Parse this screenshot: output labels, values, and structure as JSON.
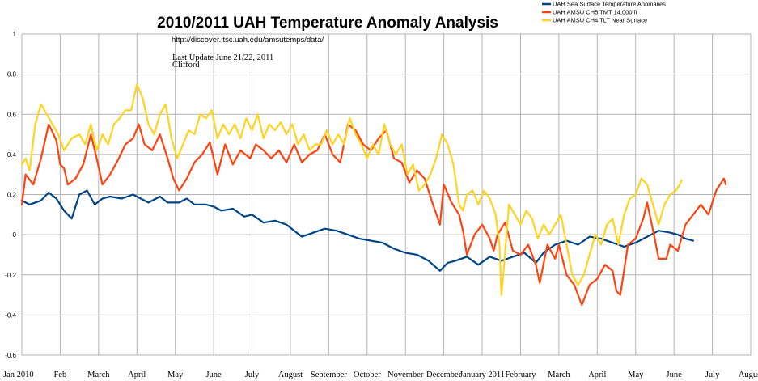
{
  "chart_data": {
    "type": "line",
    "title": "2010/2011 UAH Temperature Anomaly Analysis",
    "subtitle_url": "http://discover.itsc.uah.edu/amsutemps/data/",
    "notes": [
      "Last Update June 21/22, 2011",
      "Clifford"
    ],
    "xlabel": "",
    "ylabel": "",
    "x_tick_labels": [
      "Jan 2010",
      "Feb",
      "March",
      "April",
      "May",
      "June",
      "July",
      "August",
      "September",
      "October",
      "November",
      "December",
      "January 2011",
      "February",
      "March",
      "April",
      "May",
      "June",
      "July",
      "August"
    ],
    "y_ticks": [
      "1",
      "0.8",
      "0.6",
      "0.4",
      "0.2",
      "0",
      "-0.2",
      "-0.4",
      "-0.6"
    ],
    "ylim": [
      -0.6,
      1
    ],
    "xlim": [
      0,
      19
    ],
    "grid": true,
    "legend_position": "top-right",
    "series": [
      {
        "name": "UAH Sea Surface Temperature Anomalies",
        "color": "#004586",
        "points": [
          [
            0,
            0.17
          ],
          [
            0.2,
            0.15
          ],
          [
            0.5,
            0.17
          ],
          [
            0.7,
            0.21
          ],
          [
            0.9,
            0.18
          ],
          [
            1.1,
            0.12
          ],
          [
            1.3,
            0.08
          ],
          [
            1.5,
            0.2
          ],
          [
            1.7,
            0.22
          ],
          [
            1.9,
            0.15
          ],
          [
            2.1,
            0.18
          ],
          [
            2.3,
            0.19
          ],
          [
            2.6,
            0.18
          ],
          [
            2.9,
            0.2
          ],
          [
            3.1,
            0.18
          ],
          [
            3.3,
            0.16
          ],
          [
            3.6,
            0.19
          ],
          [
            3.8,
            0.16
          ],
          [
            4.1,
            0.16
          ],
          [
            4.3,
            0.18
          ],
          [
            4.5,
            0.15
          ],
          [
            4.8,
            0.15
          ],
          [
            5,
            0.14
          ],
          [
            5.2,
            0.12
          ],
          [
            5.5,
            0.13
          ],
          [
            5.8,
            0.09
          ],
          [
            6,
            0.1
          ],
          [
            6.3,
            0.06
          ],
          [
            6.6,
            0.07
          ],
          [
            6.9,
            0.05
          ],
          [
            7.1,
            0.02
          ],
          [
            7.3,
            -0.01
          ],
          [
            7.6,
            0.01
          ],
          [
            7.9,
            0.03
          ],
          [
            8.2,
            0.02
          ],
          [
            8.5,
            0
          ],
          [
            8.8,
            -0.02
          ],
          [
            9.1,
            -0.03
          ],
          [
            9.4,
            -0.04
          ],
          [
            9.7,
            -0.07
          ],
          [
            10,
            -0.09
          ],
          [
            10.3,
            -0.1
          ],
          [
            10.6,
            -0.13
          ],
          [
            10.9,
            -0.18
          ],
          [
            11.1,
            -0.14
          ],
          [
            11.3,
            -0.13
          ],
          [
            11.6,
            -0.11
          ],
          [
            11.9,
            -0.15
          ],
          [
            12.2,
            -0.11
          ],
          [
            12.5,
            -0.13
          ],
          [
            12.8,
            -0.11
          ],
          [
            13.1,
            -0.09
          ],
          [
            13.4,
            -0.14
          ],
          [
            13.6,
            -0.09
          ],
          [
            13.9,
            -0.05
          ],
          [
            14.2,
            -0.03
          ],
          [
            14.5,
            -0.05
          ],
          [
            14.8,
            -0.01
          ],
          [
            15.1,
            -0.02
          ],
          [
            15.4,
            -0.04
          ],
          [
            15.7,
            -0.06
          ],
          [
            16,
            -0.04
          ],
          [
            16.3,
            -0.01
          ],
          [
            16.6,
            0.02
          ],
          [
            16.9,
            0.01
          ],
          [
            17.1,
            0
          ],
          [
            17.3,
            -0.02
          ],
          [
            17.5,
            -0.03
          ]
        ]
      },
      {
        "name": "UAH AMSU CH5 TMT 14,000 ft",
        "color": "#ff420e",
        "points": [
          [
            0,
            0.15
          ],
          [
            0.1,
            0.3
          ],
          [
            0.3,
            0.25
          ],
          [
            0.5,
            0.38
          ],
          [
            0.7,
            0.55
          ],
          [
            0.9,
            0.47
          ],
          [
            1,
            0.35
          ],
          [
            1.1,
            0.33
          ],
          [
            1.2,
            0.25
          ],
          [
            1.4,
            0.28
          ],
          [
            1.6,
            0.35
          ],
          [
            1.8,
            0.5
          ],
          [
            1.95,
            0.38
          ],
          [
            2.1,
            0.25
          ],
          [
            2.3,
            0.3
          ],
          [
            2.5,
            0.37
          ],
          [
            2.7,
            0.45
          ],
          [
            2.9,
            0.48
          ],
          [
            3.05,
            0.55
          ],
          [
            3.2,
            0.45
          ],
          [
            3.4,
            0.42
          ],
          [
            3.6,
            0.5
          ],
          [
            3.8,
            0.38
          ],
          [
            3.95,
            0.28
          ],
          [
            4.1,
            0.22
          ],
          [
            4.3,
            0.28
          ],
          [
            4.5,
            0.36
          ],
          [
            4.7,
            0.4
          ],
          [
            4.9,
            0.46
          ],
          [
            5.1,
            0.3
          ],
          [
            5.3,
            0.45
          ],
          [
            5.5,
            0.35
          ],
          [
            5.7,
            0.42
          ],
          [
            5.95,
            0.38
          ],
          [
            6.1,
            0.45
          ],
          [
            6.3,
            0.42
          ],
          [
            6.5,
            0.38
          ],
          [
            6.7,
            0.42
          ],
          [
            6.9,
            0.36
          ],
          [
            7.1,
            0.45
          ],
          [
            7.3,
            0.36
          ],
          [
            7.5,
            0.4
          ],
          [
            7.7,
            0.42
          ],
          [
            7.9,
            0.5
          ],
          [
            8.1,
            0.4
          ],
          [
            8.3,
            0.36
          ],
          [
            8.5,
            0.55
          ],
          [
            8.7,
            0.52
          ],
          [
            8.9,
            0.45
          ],
          [
            9.1,
            0.42
          ],
          [
            9.3,
            0.48
          ],
          [
            9.5,
            0.52
          ],
          [
            9.7,
            0.38
          ],
          [
            9.9,
            0.36
          ],
          [
            10.1,
            0.26
          ],
          [
            10.3,
            0.32
          ],
          [
            10.5,
            0.28
          ],
          [
            10.7,
            0.16
          ],
          [
            10.9,
            0.05
          ],
          [
            11,
            0.25
          ],
          [
            11.2,
            0.16
          ],
          [
            11.4,
            0.1
          ],
          [
            11.5,
            0.02
          ],
          [
            11.6,
            -0.1
          ],
          [
            11.8,
            0
          ],
          [
            12,
            0.05
          ],
          [
            12.2,
            -0.02
          ],
          [
            12.3,
            -0.08
          ],
          [
            12.4,
            0
          ],
          [
            12.6,
            0.06
          ],
          [
            12.8,
            -0.08
          ],
          [
            13,
            -0.1
          ],
          [
            13.2,
            -0.05
          ],
          [
            13.4,
            -0.15
          ],
          [
            13.5,
            -0.24
          ],
          [
            13.7,
            -0.05
          ],
          [
            13.9,
            -0.12
          ],
          [
            14,
            -0.05
          ],
          [
            14.2,
            -0.2
          ],
          [
            14.4,
            -0.25
          ],
          [
            14.5,
            -0.3
          ],
          [
            14.6,
            -0.35
          ],
          [
            14.8,
            -0.25
          ],
          [
            15,
            -0.22
          ],
          [
            15.2,
            -0.15
          ],
          [
            15.4,
            -0.18
          ],
          [
            15.5,
            -0.28
          ],
          [
            15.6,
            -0.3
          ],
          [
            15.8,
            -0.05
          ],
          [
            16,
            -0.02
          ],
          [
            16.2,
            0.08
          ],
          [
            16.3,
            0.16
          ],
          [
            16.5,
            -0.02
          ],
          [
            16.6,
            -0.12
          ],
          [
            16.8,
            -0.12
          ],
          [
            16.9,
            -0.05
          ],
          [
            17.1,
            -0.08
          ],
          [
            17.3,
            0.05
          ],
          [
            17.5,
            0.1
          ],
          [
            17.7,
            0.15
          ],
          [
            17.9,
            0.1
          ],
          [
            18.1,
            0.22
          ],
          [
            18.3,
            0.28
          ],
          [
            18.35,
            0.25
          ]
        ]
      },
      {
        "name": "UAH AMSU CH4 TLT Near Surface",
        "color": "#ffd320",
        "points": [
          [
            0,
            0.35
          ],
          [
            0.1,
            0.38
          ],
          [
            0.2,
            0.32
          ],
          [
            0.35,
            0.55
          ],
          [
            0.5,
            0.65
          ],
          [
            0.65,
            0.6
          ],
          [
            0.8,
            0.55
          ],
          [
            0.95,
            0.5
          ],
          [
            1.1,
            0.42
          ],
          [
            1.3,
            0.48
          ],
          [
            1.5,
            0.5
          ],
          [
            1.65,
            0.45
          ],
          [
            1.8,
            0.55
          ],
          [
            1.95,
            0.42
          ],
          [
            2.1,
            0.5
          ],
          [
            2.25,
            0.45
          ],
          [
            2.4,
            0.55
          ],
          [
            2.55,
            0.58
          ],
          [
            2.7,
            0.62
          ],
          [
            2.85,
            0.62
          ],
          [
            3,
            0.75
          ],
          [
            3.15,
            0.68
          ],
          [
            3.3,
            0.55
          ],
          [
            3.45,
            0.5
          ],
          [
            3.6,
            0.6
          ],
          [
            3.75,
            0.65
          ],
          [
            3.9,
            0.48
          ],
          [
            4.05,
            0.38
          ],
          [
            4.2,
            0.45
          ],
          [
            4.35,
            0.52
          ],
          [
            4.5,
            0.5
          ],
          [
            4.65,
            0.6
          ],
          [
            4.8,
            0.58
          ],
          [
            4.95,
            0.62
          ],
          [
            5.1,
            0.48
          ],
          [
            5.25,
            0.55
          ],
          [
            5.4,
            0.5
          ],
          [
            5.55,
            0.55
          ],
          [
            5.7,
            0.48
          ],
          [
            5.85,
            0.58
          ],
          [
            6,
            0.52
          ],
          [
            6.15,
            0.6
          ],
          [
            6.3,
            0.48
          ],
          [
            6.45,
            0.55
          ],
          [
            6.6,
            0.52
          ],
          [
            6.75,
            0.56
          ],
          [
            6.9,
            0.5
          ],
          [
            7.05,
            0.55
          ],
          [
            7.2,
            0.45
          ],
          [
            7.35,
            0.5
          ],
          [
            7.5,
            0.42
          ],
          [
            7.65,
            0.45
          ],
          [
            7.8,
            0.45
          ],
          [
            7.95,
            0.52
          ],
          [
            8.1,
            0.45
          ],
          [
            8.25,
            0.5
          ],
          [
            8.4,
            0.45
          ],
          [
            8.55,
            0.58
          ],
          [
            8.7,
            0.5
          ],
          [
            8.85,
            0.45
          ],
          [
            9,
            0.38
          ],
          [
            9.15,
            0.45
          ],
          [
            9.3,
            0.4
          ],
          [
            9.45,
            0.55
          ],
          [
            9.6,
            0.45
          ],
          [
            9.75,
            0.4
          ],
          [
            9.9,
            0.45
          ],
          [
            10.05,
            0.3
          ],
          [
            10.2,
            0.35
          ],
          [
            10.35,
            0.22
          ],
          [
            10.5,
            0.25
          ],
          [
            10.65,
            0.3
          ],
          [
            10.8,
            0.38
          ],
          [
            10.95,
            0.5
          ],
          [
            11.1,
            0.45
          ],
          [
            11.25,
            0.35
          ],
          [
            11.4,
            0.15
          ],
          [
            11.5,
            0.12
          ],
          [
            11.6,
            0.2
          ],
          [
            11.75,
            0.22
          ],
          [
            11.9,
            0.15
          ],
          [
            12.05,
            0.22
          ],
          [
            12.2,
            0.18
          ],
          [
            12.35,
            0.1
          ],
          [
            12.45,
            -0.05
          ],
          [
            12.5,
            -0.3
          ],
          [
            12.55,
            -0.2
          ],
          [
            12.7,
            0.15
          ],
          [
            12.85,
            0.1
          ],
          [
            13,
            0.05
          ],
          [
            13.15,
            0.12
          ],
          [
            13.3,
            0.08
          ],
          [
            13.45,
            -0.02
          ],
          [
            13.6,
            0.05
          ],
          [
            13.75,
            0
          ],
          [
            13.9,
            0.05
          ],
          [
            14.05,
            0.1
          ],
          [
            14.2,
            -0.05
          ],
          [
            14.35,
            -0.2
          ],
          [
            14.5,
            -0.25
          ],
          [
            14.65,
            -0.2
          ],
          [
            14.8,
            -0.1
          ],
          [
            14.95,
            0
          ],
          [
            15.1,
            -0.05
          ],
          [
            15.25,
            0.05
          ],
          [
            15.4,
            0.08
          ],
          [
            15.55,
            -0.05
          ],
          [
            15.7,
            0.1
          ],
          [
            15.85,
            0.18
          ],
          [
            16,
            0.2
          ],
          [
            16.15,
            0.28
          ],
          [
            16.3,
            0.25
          ],
          [
            16.45,
            0.15
          ],
          [
            16.6,
            0.05
          ],
          [
            16.75,
            0.15
          ],
          [
            16.9,
            0.2
          ],
          [
            17.05,
            0.22
          ],
          [
            17.15,
            0.25
          ],
          [
            17.2,
            0.27
          ]
        ]
      }
    ]
  }
}
